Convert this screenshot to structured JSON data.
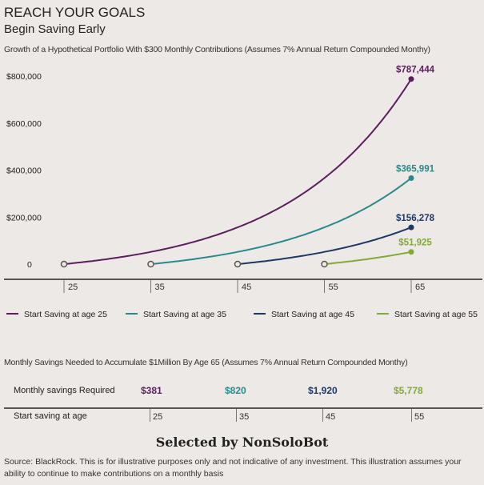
{
  "header": {
    "title": "REACH YOUR GOALS",
    "subtitle": "Begin Saving Early"
  },
  "chart_data": {
    "type": "line",
    "title": "Growth of a Hypothetical Portfolio With $300 Monthly Contributions (Assumes 7% Annual Return Compounded Monthy)",
    "xlabel": "",
    "ylabel": "",
    "x_ticks": [
      "25",
      "35",
      "45",
      "55",
      "65"
    ],
    "y_ticks": [
      {
        "v": 0,
        "label": "0"
      },
      {
        "v": 200000,
        "label": "$200,000"
      },
      {
        "v": 400000,
        "label": "$400,000"
      },
      {
        "v": 600000,
        "label": "$600,000"
      },
      {
        "v": 800000,
        "label": "$800,000"
      }
    ],
    "xlim": [
      25,
      65
    ],
    "ylim": [
      0,
      800000
    ],
    "monthly_contribution": 300,
    "annual_rate": 0.07,
    "series": [
      {
        "name": "Start Saving at age 25",
        "start_age": 25,
        "end_age": 65,
        "end_value": 787444,
        "end_label": "$787,444",
        "color": "#5c1e5e"
      },
      {
        "name": "Start Saving at age 35",
        "start_age": 35,
        "end_age": 65,
        "end_value": 365991,
        "end_label": "$365,991",
        "color": "#2a8a8a"
      },
      {
        "name": "Start Saving at age 45",
        "start_age": 45,
        "end_age": 65,
        "end_value": 156278,
        "end_label": "$156,278",
        "color": "#1e3966"
      },
      {
        "name": "Start Saving at age 55",
        "start_age": 55,
        "end_age": 65,
        "end_value": 51925,
        "end_label": "$51,925",
        "color": "#86a83a"
      }
    ],
    "legend": "bottom"
  },
  "table": {
    "title": "Monthly Savings Needed to Accumulate $1Million By Age 65 (Assumes 7% Annual Return Compounded Monthy)",
    "row1_label": "Monthly savings Required",
    "row2_label": "Start saving at age",
    "values": [
      "$381",
      "$820",
      "$1,920",
      "$5,778"
    ],
    "ages": [
      "25",
      "35",
      "45",
      "55"
    ]
  },
  "credit": "Selected by NonSoloBot",
  "source": "Source: BlackRock. This is for illustrative purposes only and not indicative of any investment. This illustration assumes your ability to continue to make contributions on a monthly basis"
}
